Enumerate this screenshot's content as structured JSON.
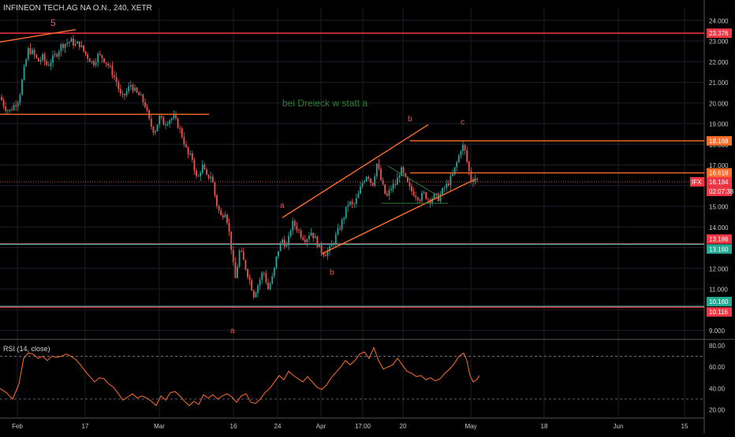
{
  "header": {
    "title": "INFINEON TECH.AG NA O.N., 240, XETR"
  },
  "rsi": {
    "title": "RSI (14, close)",
    "levels": [
      "80.00",
      "60.00",
      "40.00",
      "20.00"
    ]
  },
  "colors": {
    "bg": "#000000",
    "up": "#26a69a",
    "down": "#ef5350",
    "orange": "#ff6d2a",
    "teal": "#26a69a",
    "red": "#f23645",
    "green": "#2e7d32",
    "grid": "#1c1f2a",
    "axis": "#c8c8c8",
    "label_red": "#f23645",
    "label_teal": "#22ab94"
  },
  "chart_data": {
    "type": "candlestick",
    "title": "INFINEON TECH.AG NA O.N., 240, XETR",
    "ylim": [
      8.6,
      24.6
    ],
    "y_ticks": [
      "24.000",
      "23.000",
      "22.000",
      "21.000",
      "20.000",
      "19.000",
      "18.000",
      "17.000",
      "16.000",
      "15.000",
      "14.000",
      "13.000",
      "12.000",
      "11.000",
      "10.000",
      "9.000"
    ],
    "y_tick_values": [
      24,
      23,
      22,
      21,
      20,
      19,
      18,
      17,
      16,
      15,
      14,
      13,
      12,
      11,
      10,
      9
    ],
    "x_ticks": [
      "Feb",
      "17",
      "Mar",
      "16",
      "24",
      "Apr",
      "17:00",
      "20",
      "May",
      "18",
      "Jun",
      "15"
    ],
    "close_path": [
      [
        0,
        20.3
      ],
      [
        6,
        19.8
      ],
      [
        12,
        19.6
      ],
      [
        18,
        19.9
      ],
      [
        24,
        20.2
      ],
      [
        30,
        21.5
      ],
      [
        36,
        22.6
      ],
      [
        42,
        22.4
      ],
      [
        48,
        22.0
      ],
      [
        54,
        22.2
      ],
      [
        60,
        21.8
      ],
      [
        66,
        22.1
      ],
      [
        72,
        22.4
      ],
      [
        78,
        22.8
      ],
      [
        84,
        22.9
      ],
      [
        90,
        23.0
      ],
      [
        96,
        22.8
      ],
      [
        100,
        22.9
      ],
      [
        106,
        22.5
      ],
      [
        112,
        22.2
      ],
      [
        118,
        21.9
      ],
      [
        124,
        22.3
      ],
      [
        130,
        22.2
      ],
      [
        136,
        21.9
      ],
      [
        142,
        21.5
      ],
      [
        148,
        21.0
      ],
      [
        154,
        20.2
      ],
      [
        160,
        20.5
      ],
      [
        166,
        20.9
      ],
      [
        172,
        20.5
      ],
      [
        178,
        20.3
      ],
      [
        184,
        19.9
      ],
      [
        190,
        19.0
      ],
      [
        196,
        18.6
      ],
      [
        202,
        19.3
      ],
      [
        208,
        19.0
      ],
      [
        214,
        19.2
      ],
      [
        220,
        19.3
      ],
      [
        226,
        18.9
      ],
      [
        232,
        18.3
      ],
      [
        238,
        17.5
      ],
      [
        244,
        17.3
      ],
      [
        250,
        16.2
      ],
      [
        256,
        17.0
      ],
      [
        262,
        16.4
      ],
      [
        268,
        16.5
      ],
      [
        274,
        15.2
      ],
      [
        280,
        14.5
      ],
      [
        286,
        14.8
      ],
      [
        292,
        13.4
      ],
      [
        298,
        11.4
      ],
      [
        304,
        12.9
      ],
      [
        310,
        12.2
      ],
      [
        316,
        11.5
      ],
      [
        322,
        10.7
      ],
      [
        328,
        11.3
      ],
      [
        334,
        11.9
      ],
      [
        340,
        11.0
      ],
      [
        346,
        11.6
      ],
      [
        352,
        12.8
      ],
      [
        358,
        13.4
      ],
      [
        364,
        13.0
      ],
      [
        370,
        14.2
      ],
      [
        376,
        14.0
      ],
      [
        382,
        13.6
      ],
      [
        388,
        13.4
      ],
      [
        394,
        13.8
      ],
      [
        400,
        13.4
      ],
      [
        406,
        12.9
      ],
      [
        412,
        12.7
      ],
      [
        418,
        12.9
      ],
      [
        424,
        13.4
      ],
      [
        430,
        13.9
      ],
      [
        436,
        14.5
      ],
      [
        442,
        15.2
      ],
      [
        448,
        15.0
      ],
      [
        454,
        15.5
      ],
      [
        460,
        16.2
      ],
      [
        466,
        16.6
      ],
      [
        472,
        16.0
      ],
      [
        478,
        17.1
      ],
      [
        484,
        16.1
      ],
      [
        490,
        15.4
      ],
      [
        496,
        15.9
      ],
      [
        502,
        16.1
      ],
      [
        508,
        16.8
      ],
      [
        514,
        16.3
      ],
      [
        520,
        15.8
      ],
      [
        526,
        15.6
      ],
      [
        532,
        15.4
      ],
      [
        538,
        15.6
      ],
      [
        544,
        15.3
      ],
      [
        550,
        15.5
      ],
      [
        556,
        15.4
      ],
      [
        562,
        15.8
      ],
      [
        568,
        16.1
      ],
      [
        574,
        16.5
      ],
      [
        580,
        17.2
      ],
      [
        586,
        18.0
      ],
      [
        590,
        17.6
      ],
      [
        594,
        16.8
      ],
      [
        598,
        16.2
      ],
      [
        602,
        16.4
      ],
      [
        606,
        16.2
      ]
    ],
    "series": [
      {
        "name": "RSI (14, close)",
        "ylim": [
          13,
          85
        ],
        "path": [
          [
            0,
            40
          ],
          [
            8,
            36
          ],
          [
            16,
            30
          ],
          [
            24,
            44
          ],
          [
            30,
            68
          ],
          [
            36,
            73
          ],
          [
            42,
            72
          ],
          [
            48,
            68
          ],
          [
            54,
            70
          ],
          [
            60,
            66
          ],
          [
            66,
            70
          ],
          [
            72,
            69
          ],
          [
            78,
            70
          ],
          [
            84,
            72
          ],
          [
            90,
            70
          ],
          [
            96,
            67
          ],
          [
            102,
            62
          ],
          [
            108,
            56
          ],
          [
            114,
            51
          ],
          [
            120,
            46
          ],
          [
            126,
            50
          ],
          [
            132,
            49
          ],
          [
            138,
            44
          ],
          [
            144,
            41
          ],
          [
            150,
            35
          ],
          [
            156,
            29
          ],
          [
            162,
            32
          ],
          [
            168,
            35
          ],
          [
            174,
            31
          ],
          [
            180,
            33
          ],
          [
            186,
            31
          ],
          [
            192,
            28
          ],
          [
            198,
            24
          ],
          [
            204,
            33
          ],
          [
            210,
            29
          ],
          [
            216,
            36
          ],
          [
            222,
            37
          ],
          [
            228,
            33
          ],
          [
            234,
            28
          ],
          [
            240,
            24
          ],
          [
            246,
            28
          ],
          [
            252,
            25
          ],
          [
            258,
            34
          ],
          [
            264,
            31
          ],
          [
            270,
            34
          ],
          [
            276,
            30
          ],
          [
            282,
            33
          ],
          [
            288,
            35
          ],
          [
            294,
            32
          ],
          [
            300,
            27
          ],
          [
            306,
            33
          ],
          [
            312,
            35
          ],
          [
            318,
            27
          ],
          [
            324,
            26
          ],
          [
            330,
            30
          ],
          [
            336,
            36
          ],
          [
            342,
            40
          ],
          [
            348,
            46
          ],
          [
            354,
            52
          ],
          [
            360,
            48
          ],
          [
            366,
            56
          ],
          [
            372,
            52
          ],
          [
            378,
            49
          ],
          [
            384,
            46
          ],
          [
            390,
            51
          ],
          [
            396,
            46
          ],
          [
            402,
            41
          ],
          [
            408,
            39
          ],
          [
            414,
            43
          ],
          [
            420,
            50
          ],
          [
            426,
            55
          ],
          [
            432,
            60
          ],
          [
            438,
            66
          ],
          [
            444,
            62
          ],
          [
            450,
            66
          ],
          [
            456,
            72
          ],
          [
            462,
            74
          ],
          [
            468,
            68
          ],
          [
            474,
            78
          ],
          [
            480,
            66
          ],
          [
            486,
            58
          ],
          [
            492,
            60
          ],
          [
            498,
            62
          ],
          [
            504,
            68
          ],
          [
            510,
            62
          ],
          [
            516,
            56
          ],
          [
            522,
            54
          ],
          [
            528,
            51
          ],
          [
            534,
            52
          ],
          [
            540,
            48
          ],
          [
            546,
            50
          ],
          [
            552,
            47
          ],
          [
            558,
            49
          ],
          [
            564,
            54
          ],
          [
            570,
            58
          ],
          [
            576,
            63
          ],
          [
            582,
            70
          ],
          [
            588,
            73
          ],
          [
            592,
            66
          ],
          [
            596,
            52
          ],
          [
            600,
            46
          ],
          [
            604,
            48
          ],
          [
            608,
            52
          ]
        ]
      }
    ],
    "horizontal_levels": [
      {
        "name": "resistance-23376",
        "value": 23.376,
        "label": "23.376",
        "color": "red"
      },
      {
        "name": "support-13186",
        "value": 13.186,
        "label": "13.186",
        "color": "red"
      },
      {
        "name": "support-13160",
        "value": 13.16,
        "label": "13.160",
        "color": "teal"
      },
      {
        "name": "support-10160",
        "value": 10.16,
        "label": "10.160",
        "color": "teal"
      },
      {
        "name": "support-10116",
        "value": 10.116,
        "label": "10.116",
        "color": "red"
      }
    ],
    "price_labels": [
      {
        "name": "level-18168",
        "text": "18.168",
        "value": 18.168
      },
      {
        "name": "level-16618",
        "text": "16.618",
        "value": 16.618
      },
      {
        "name": "level-16184",
        "text": "16.184",
        "value": 16.184,
        "ticker": "IFX"
      },
      {
        "name": "countdown",
        "text": "02:07:38",
        "value": 15.72
      }
    ],
    "annotations": [
      {
        "name": "wave-5",
        "text": "5"
      },
      {
        "name": "wave-a-low",
        "text": "a"
      },
      {
        "name": "wave-a",
        "text": "a"
      },
      {
        "name": "wave-b-upper",
        "text": "b"
      },
      {
        "name": "wave-b-lower",
        "text": "b"
      },
      {
        "name": "wave-c",
        "text": "c"
      },
      {
        "name": "note",
        "text": "bei Dreieck w statt a"
      }
    ]
  }
}
